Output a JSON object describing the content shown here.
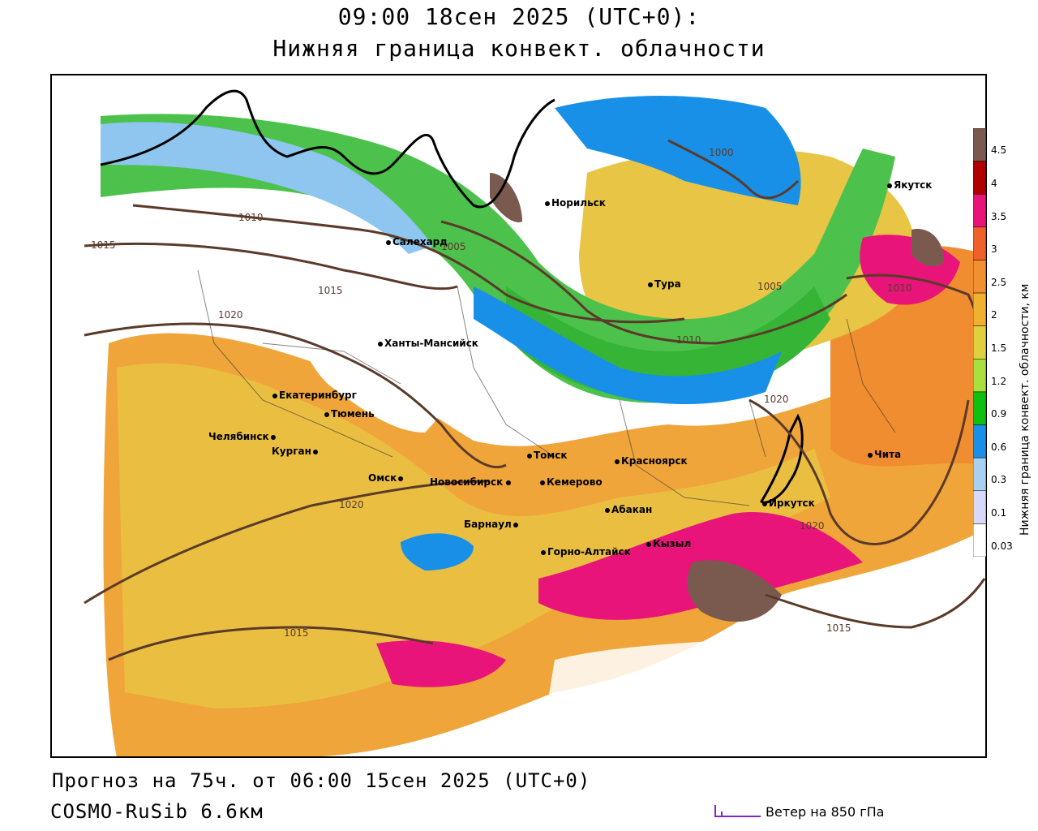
{
  "title": {
    "line1": "09:00 18сен 2025 (UTC+0):",
    "line2": "Нижняя граница конвект. облачности"
  },
  "footer": {
    "forecast": "Прогноз на 75ч. от 06:00 15сен 2025 (UTC+0)",
    "model": "COSMO-RuSib 6.6км",
    "wind_legend": "Ветер на 850 гПа"
  },
  "legend": {
    "title": "Нижняя граница конвект. облачности, км",
    "ticks": [
      "4.5",
      "4",
      "3.5",
      "3",
      "2.5",
      "2",
      "1.5",
      "1.2",
      "0.9",
      "0.6",
      "0.3",
      "0.1",
      "0.03"
    ],
    "colors": [
      "#7a5a4e",
      "#b00000",
      "#e8147a",
      "#f0602a",
      "#f09030",
      "#f0b030",
      "#e0d040",
      "#a8e040",
      "#10c010",
      "#1890e8",
      "#a8d0f0",
      "#d8d8f8",
      "#ffffff"
    ]
  },
  "cities": [
    {
      "name": "Якутск"
    },
    {
      "name": "Норильск"
    },
    {
      "name": "Салехард"
    },
    {
      "name": "Тура"
    },
    {
      "name": "Ханты-Мансийск"
    },
    {
      "name": "Екатеринбург"
    },
    {
      "name": "Тюмень"
    },
    {
      "name": "Челябинск"
    },
    {
      "name": "Курган"
    },
    {
      "name": "Омск"
    },
    {
      "name": "Новосибирск"
    },
    {
      "name": "Томск"
    },
    {
      "name": "Кемерово"
    },
    {
      "name": "Красноярск"
    },
    {
      "name": "Абакан"
    },
    {
      "name": "Барнаул"
    },
    {
      "name": "Горно-Алтайск"
    },
    {
      "name": "Кызыл"
    },
    {
      "name": "Иркутск"
    },
    {
      "name": "Чита"
    }
  ],
  "isobars": [
    "1000",
    "1005",
    "1010",
    "1015",
    "1020"
  ]
}
